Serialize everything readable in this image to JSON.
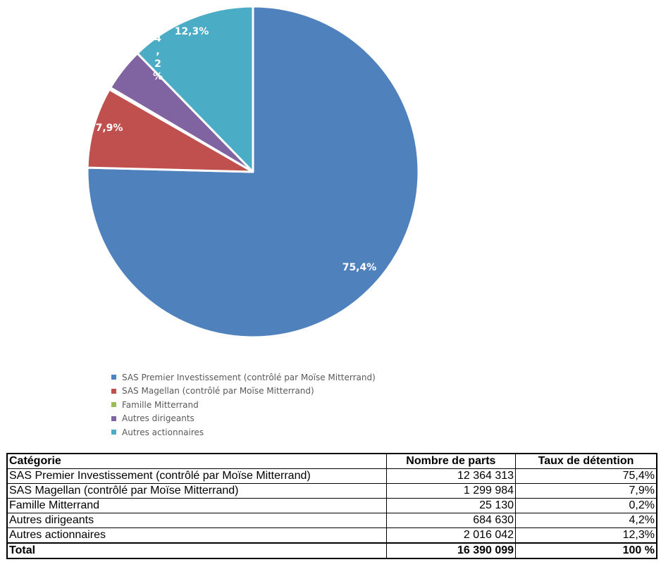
{
  "chart_data": {
    "type": "pie",
    "categories": [
      "SAS Premier Investissement (contrôlé par Moïse Mitterrand)",
      "SAS Magellan (contrôlé par Moïse Mitterrand)",
      "Famille Mitterrand",
      "Autres dirigeants",
      "Autres actionnaires"
    ],
    "values": [
      75.4,
      7.9,
      0.2,
      4.2,
      12.3
    ],
    "data_labels": [
      "75,4%",
      "7,9%",
      "",
      "4\n,\n2\n%",
      "12,3%"
    ],
    "colors": [
      "#4F81BD",
      "#C0504D",
      "#9BBB59",
      "#8064A2",
      "#4BACC6"
    ],
    "legend_position": "bottom"
  },
  "legend": {
    "items": [
      {
        "label": "SAS Premier Investissement (contrôlé par Moïse Mitterrand)",
        "color": "#4F81BD"
      },
      {
        "label": "SAS Magellan (contrôlé par Moïse Mitterrand)",
        "color": "#C0504D"
      },
      {
        "label": "Famille Mitterrand",
        "color": "#9BBB59"
      },
      {
        "label": "Autres dirigeants",
        "color": "#8064A2"
      },
      {
        "label": "Autres actionnaires",
        "color": "#4BACC6"
      }
    ]
  },
  "table": {
    "headers": [
      "Catégorie",
      "Nombre de parts",
      "Taux de détention"
    ],
    "rows": [
      [
        "SAS Premier Investissement (contrôlé par Moïse Mitterrand)",
        "12 364 313",
        "75,4%"
      ],
      [
        "SAS Magellan (contrôlé par Moïse Mitterrand)",
        "1 299 984",
        "7,9%"
      ],
      [
        "Famille Mitterrand",
        "25 130",
        "0,2%"
      ],
      [
        "Autres dirigeants",
        "684 630",
        "4,2%"
      ],
      [
        "Autres actionnaires",
        "2 016 042",
        "12,3%"
      ]
    ],
    "total": [
      "Total",
      "16 390 099",
      "100 %"
    ]
  }
}
